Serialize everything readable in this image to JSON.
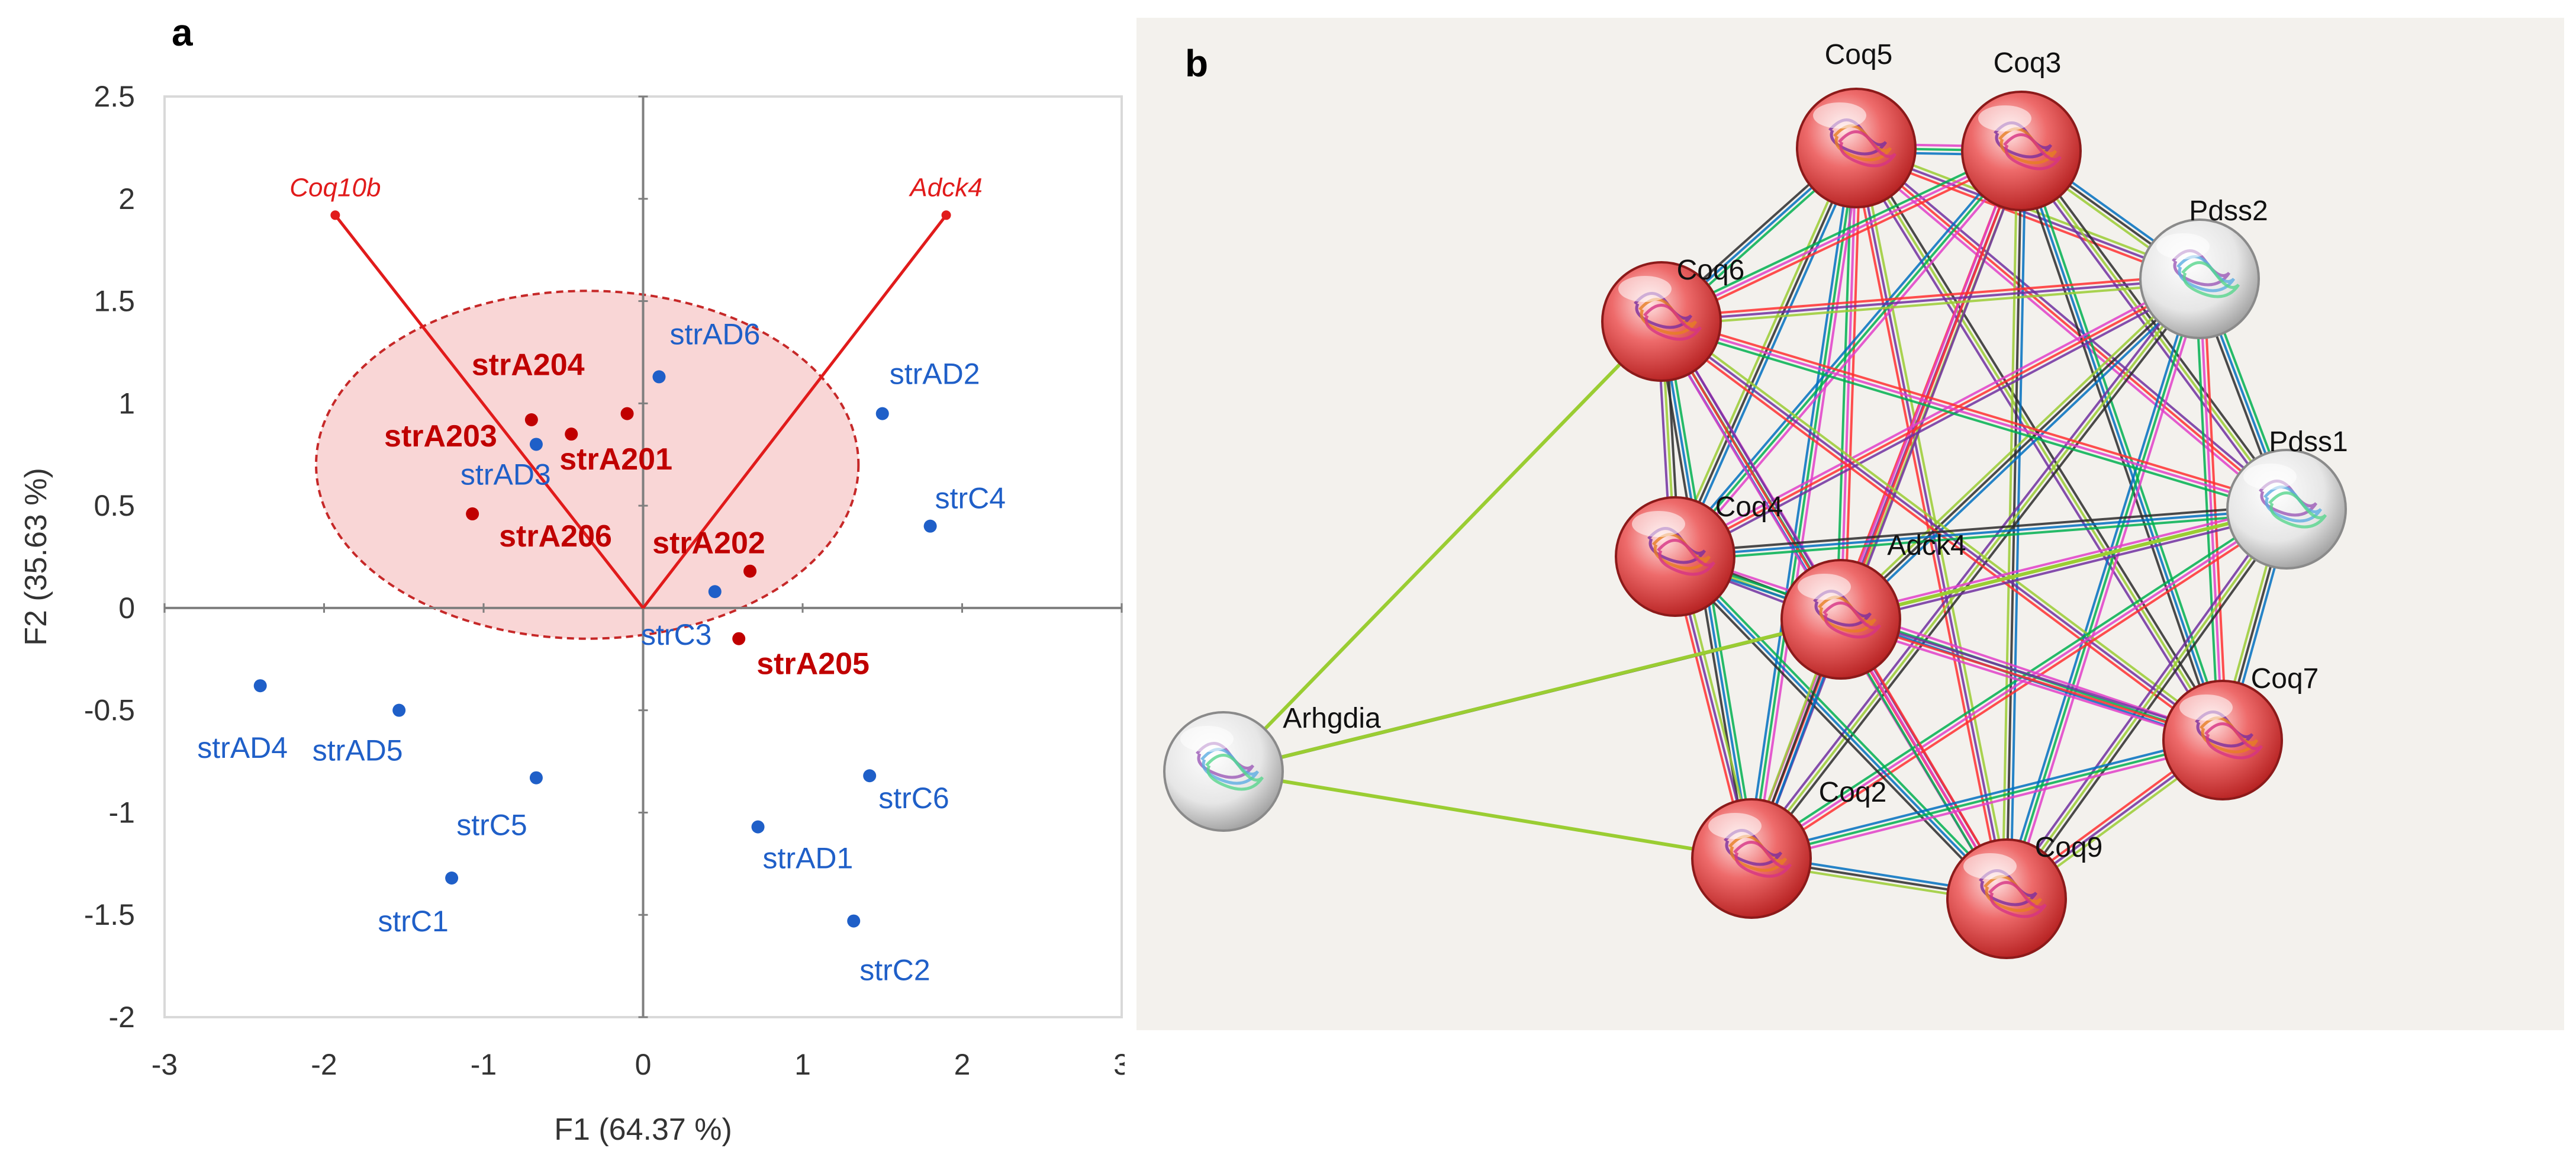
{
  "panel_a_label": "a",
  "panel_b_label": "b",
  "colors": {
    "blue": "#1f5fc8",
    "red": "#c00000",
    "loading": "#e11b1b",
    "ellipse_fill": "#f9d6d6",
    "ellipse_stroke": "#c62828",
    "axis": "#7f7f7f",
    "frame": "#d9d9d9",
    "edge_colors": [
      "#2b2b2b",
      "#e040c8",
      "#9acd32",
      "#00b050",
      "#7030a0",
      "#0070c0",
      "#ff3030"
    ]
  },
  "chart_data": {
    "type": "scatter",
    "title": "",
    "xlabel": "F1 (64.37 %)",
    "ylabel": "F2 (35.63 %)",
    "xlim": [
      -3,
      3
    ],
    "ylim": [
      -2,
      2.5
    ],
    "xticks": [
      -3,
      -2,
      -1,
      0,
      1,
      2,
      3
    ],
    "yticks": [
      -2,
      -1.5,
      -1,
      -0.5,
      0,
      0.5,
      1,
      1.5,
      2,
      2.5
    ],
    "x_tick_labels": [
      "-3",
      "-2",
      "-1",
      "0",
      "1",
      "2",
      "3"
    ],
    "y_tick_labels": [
      "-2",
      "-1.5",
      "-1",
      "-0.5",
      "0",
      "0.5",
      "1",
      "1.5",
      "2",
      "2.5"
    ],
    "series": [
      {
        "name": "strA2",
        "color": "red",
        "bold": true,
        "points": [
          {
            "label": "strA201",
            "x": -0.45,
            "y": 0.85
          },
          {
            "label": "strA202",
            "x": 0.67,
            "y": 0.18
          },
          {
            "label": "strA203",
            "x": -0.7,
            "y": 0.92
          },
          {
            "label": "strA204",
            "x": -0.1,
            "y": 0.95
          },
          {
            "label": "strA205",
            "x": 0.6,
            "y": -0.15
          },
          {
            "label": "strA206",
            "x": -1.07,
            "y": 0.46
          }
        ]
      },
      {
        "name": "strAD",
        "color": "blue",
        "bold": false,
        "points": [
          {
            "label": "strAD1",
            "x": 0.72,
            "y": -1.07
          },
          {
            "label": "strAD2",
            "x": 1.5,
            "y": 0.95
          },
          {
            "label": "strAD3",
            "x": -0.67,
            "y": 0.8
          },
          {
            "label": "strAD4",
            "x": -2.4,
            "y": -0.38
          },
          {
            "label": "strAD5",
            "x": -1.53,
            "y": -0.5
          },
          {
            "label": "strAD6",
            "x": 0.1,
            "y": 1.13
          }
        ]
      },
      {
        "name": "strC",
        "color": "blue",
        "bold": false,
        "points": [
          {
            "label": "strC1",
            "x": -1.2,
            "y": -1.32
          },
          {
            "label": "strC2",
            "x": 1.32,
            "y": -1.53
          },
          {
            "label": "strC3",
            "x": 0.45,
            "y": 0.08
          },
          {
            "label": "strC4",
            "x": 1.8,
            "y": 0.4
          },
          {
            "label": "strC5",
            "x": -0.67,
            "y": -0.83
          },
          {
            "label": "strC6",
            "x": 1.42,
            "y": -0.82
          }
        ]
      }
    ],
    "loadings": [
      {
        "label": "Coq10b",
        "x": -1.93,
        "y": 1.92
      },
      {
        "label": "Adck4",
        "x": 1.9,
        "y": 1.92
      }
    ],
    "confidence_ellipse": {
      "cx": -0.35,
      "cy": 0.7,
      "rx": 1.7,
      "ry": 0.85
    }
  },
  "network": {
    "nodes": [
      {
        "id": "Coq5",
        "label": "Coq5",
        "type": "red"
      },
      {
        "id": "Coq3",
        "label": "Coq3",
        "type": "red"
      },
      {
        "id": "Pdss2",
        "label": "Pdss2",
        "type": "white"
      },
      {
        "id": "Coq6",
        "label": "Coq6",
        "type": "red"
      },
      {
        "id": "Pdss1",
        "label": "Pdss1",
        "type": "white"
      },
      {
        "id": "Coq4",
        "label": "Coq4",
        "type": "red"
      },
      {
        "id": "Adck4",
        "label": "Adck4",
        "type": "red"
      },
      {
        "id": "Coq7",
        "label": "Coq7",
        "type": "red"
      },
      {
        "id": "Arhgdia",
        "label": "Arhgdia",
        "type": "white"
      },
      {
        "id": "Coq2",
        "label": "Coq2",
        "type": "red"
      },
      {
        "id": "Coq9",
        "label": "Coq9",
        "type": "red"
      }
    ],
    "sparse_edges": [
      [
        "Arhgdia",
        "Coq6"
      ],
      [
        "Arhgdia",
        "Adck4"
      ],
      [
        "Arhgdia",
        "Coq2"
      ],
      [
        "Arhgdia",
        "Pdss1"
      ]
    ]
  }
}
